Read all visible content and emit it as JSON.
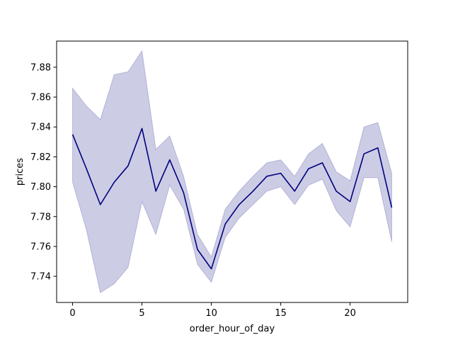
{
  "chart_data": {
    "type": "line",
    "title": "",
    "xlabel": "order_hour_of_day",
    "ylabel": "prices",
    "xlim": [
      -1.15,
      24.15
    ],
    "ylim": [
      7.7225,
      7.8975
    ],
    "xticks": [
      0,
      5,
      10,
      15,
      20
    ],
    "xtick_labels": [
      "0",
      "5",
      "10",
      "15",
      "20"
    ],
    "yticks": [
      7.74,
      7.76,
      7.78,
      7.8,
      7.82,
      7.84,
      7.86,
      7.88
    ],
    "ytick_labels": [
      "7.74",
      "7.76",
      "7.78",
      "7.80",
      "7.82",
      "7.84",
      "7.86",
      "7.88"
    ],
    "grid": false,
    "line_color": "#00007f",
    "band_color": "#00007f",
    "x": [
      0,
      1,
      2,
      3,
      4,
      5,
      6,
      7,
      8,
      9,
      10,
      11,
      12,
      13,
      14,
      15,
      16,
      17,
      18,
      19,
      20,
      21,
      22,
      23
    ],
    "series": [
      {
        "values": [
          7.835,
          7.812,
          7.788,
          7.803,
          7.814,
          7.839,
          7.797,
          7.818,
          7.796,
          7.758,
          7.745,
          7.775,
          7.788,
          7.797,
          7.807,
          7.809,
          7.797,
          7.812,
          7.816,
          7.797,
          7.79,
          7.822,
          7.826,
          7.786
        ],
        "ci_lower": [
          7.803,
          7.771,
          7.729,
          7.735,
          7.746,
          7.79,
          7.768,
          7.801,
          7.785,
          7.748,
          7.736,
          7.766,
          7.779,
          7.788,
          7.797,
          7.8,
          7.788,
          7.801,
          7.805,
          7.784,
          7.773,
          7.806,
          7.806,
          7.763
        ],
        "ci_upper": [
          7.866,
          7.854,
          7.845,
          7.875,
          7.877,
          7.891,
          7.825,
          7.834,
          7.807,
          7.768,
          7.753,
          7.785,
          7.797,
          7.807,
          7.816,
          7.818,
          7.807,
          7.822,
          7.829,
          7.81,
          7.804,
          7.84,
          7.843,
          7.809
        ]
      }
    ]
  }
}
